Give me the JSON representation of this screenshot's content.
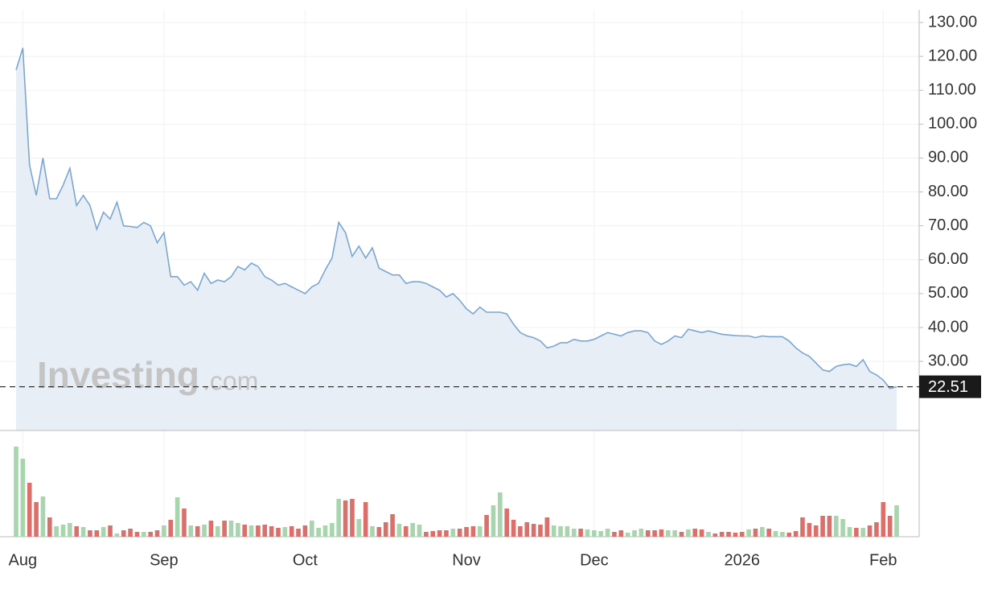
{
  "chart_data": {
    "type": "line",
    "watermark": {
      "brand": "Investing",
      "suffix": ".com"
    },
    "categories": [
      null,
      "Aug",
      null,
      null,
      null,
      null,
      null,
      null,
      null,
      null,
      null,
      null,
      null,
      null,
      null,
      null,
      null,
      null,
      null,
      null,
      null,
      null,
      "Sep",
      null,
      null,
      null,
      null,
      null,
      null,
      null,
      null,
      null,
      null,
      null,
      null,
      null,
      null,
      null,
      null,
      null,
      null,
      null,
      null,
      "Oct",
      null,
      null,
      null,
      null,
      null,
      null,
      null,
      null,
      null,
      null,
      null,
      null,
      null,
      null,
      null,
      null,
      null,
      null,
      null,
      null,
      null,
      null,
      null,
      "Nov",
      null,
      null,
      null,
      null,
      null,
      null,
      null,
      null,
      null,
      null,
      null,
      null,
      null,
      null,
      null,
      null,
      null,
      null,
      "Dec",
      null,
      null,
      null,
      null,
      null,
      null,
      null,
      null,
      null,
      null,
      null,
      null,
      null,
      null,
      null,
      null,
      null,
      null,
      null,
      null,
      null,
      "2026",
      null,
      null,
      null,
      null,
      null,
      null,
      null,
      null,
      null,
      null,
      null,
      null,
      null,
      null,
      null,
      null,
      null,
      null,
      null,
      null,
      "Feb",
      null,
      null
    ],
    "series": [
      {
        "color": "#7ba6d3",
        "fill": "#e8eef6",
        "values": [
          116,
          122.5,
          88,
          79,
          90,
          78,
          78,
          82,
          87,
          76,
          79,
          76,
          69,
          74,
          72,
          77,
          70,
          69.8,
          69.5,
          71,
          70,
          65,
          68,
          55,
          55,
          52.5,
          53.5,
          51,
          56,
          53,
          54,
          53.5,
          55,
          58,
          57,
          59,
          58,
          55,
          54,
          52.5,
          53,
          52,
          51,
          50,
          52,
          53,
          57,
          60.5,
          71,
          68,
          61,
          64,
          60.5,
          63.5,
          57.5,
          56.5,
          55.5,
          55.5,
          53,
          53.5,
          53.5,
          53,
          52,
          51,
          49,
          50,
          48,
          45.5,
          44,
          46,
          44.5,
          44.5,
          44.5,
          44,
          41,
          38.5,
          37.5,
          37,
          36,
          34,
          34.5,
          35.5,
          35.5,
          36.5,
          36,
          36,
          36.5,
          37.5,
          38.5,
          38,
          37.5,
          38.5,
          39,
          39,
          38.5,
          36,
          35,
          36,
          37.5,
          37,
          39.5,
          39,
          38.5,
          39,
          38.5,
          38,
          37.8,
          37.6,
          37.5,
          37.5,
          37,
          37.5,
          37.3,
          37.3,
          37.3,
          36,
          34,
          32.5,
          31.5,
          29.5,
          27.5,
          27,
          28.5,
          29,
          29.2,
          28.5,
          30.5,
          27,
          26,
          24.5,
          22,
          22.51
        ]
      }
    ],
    "volume": {
      "up_color": "#a8d5ad",
      "down_color": "#d9706b",
      "ylim": [
        0,
        130
      ],
      "values": [
        112,
        97,
        67,
        43,
        50,
        24,
        13,
        15,
        17,
        13,
        12,
        8,
        8,
        12,
        14,
        4,
        8,
        10,
        6,
        6,
        6,
        8,
        14,
        21,
        49,
        35,
        14,
        13,
        15,
        20,
        13,
        20,
        20,
        17,
        15,
        14,
        14,
        15,
        13,
        11,
        12,
        13,
        10,
        14,
        20,
        11,
        14,
        17,
        47,
        45,
        47,
        22,
        43,
        13,
        12,
        18,
        28,
        16,
        13,
        17,
        15,
        6,
        7,
        8,
        8,
        10,
        10,
        12,
        13,
        13,
        27,
        39,
        55,
        35,
        21,
        13,
        18,
        16,
        15,
        24,
        14,
        13,
        13,
        10,
        10,
        9,
        8,
        7,
        10,
        6,
        8,
        5,
        8,
        10,
        8,
        8,
        9,
        8,
        8,
        6,
        9,
        10,
        9,
        6,
        4,
        6,
        6,
        5,
        6,
        9,
        10,
        12,
        10,
        7,
        6,
        5,
        7,
        24,
        17,
        14,
        26,
        26,
        26,
        22,
        12,
        11,
        11,
        14,
        18,
        43,
        26,
        39
      ]
    },
    "ylim": [
      9.6,
      133.8
    ],
    "yticks": [
      {
        "value": 30,
        "label": "30.00"
      },
      {
        "value": 40,
        "label": "40.00"
      },
      {
        "value": 50,
        "label": "50.00"
      },
      {
        "value": 60,
        "label": "60.00"
      },
      {
        "value": 70,
        "label": "70.00"
      },
      {
        "value": 80,
        "label": "80.00"
      },
      {
        "value": 90,
        "label": "90.00"
      },
      {
        "value": 100,
        "label": "100.00"
      },
      {
        "value": 110,
        "label": "110.00"
      },
      {
        "value": 120,
        "label": "120.00"
      },
      {
        "value": 130,
        "label": "130.00"
      }
    ],
    "grid": true
  }
}
